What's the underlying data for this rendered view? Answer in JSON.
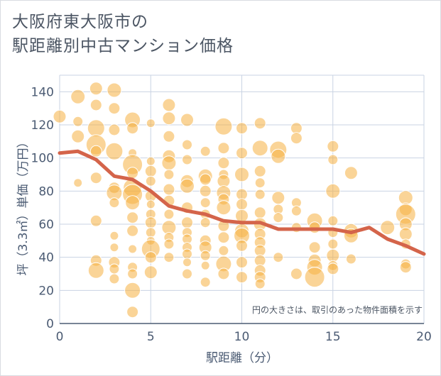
{
  "chart_data": {
    "type": "scatter",
    "title_lines": [
      "大阪府東大阪市の",
      "駅距離別中古マンション価格"
    ],
    "xlabel": "駅距離（分）",
    "ylabel": "坪（3.3㎡）単価（万円）",
    "xlim": [
      0,
      20
    ],
    "ylim": [
      0,
      150
    ],
    "x_ticks": [
      0,
      5,
      10,
      15,
      20
    ],
    "y_ticks": [
      0,
      20,
      40,
      60,
      80,
      100,
      120,
      140
    ],
    "grid": true,
    "note": "円の大きさは、取引のあった物件面積を示す",
    "colors": {
      "bubble": "#f5b041",
      "line": "#d4644a",
      "grid": "#c9d3e3",
      "axis": "#4b5b73"
    },
    "trend_line": {
      "x": [
        0,
        1,
        2,
        3,
        4,
        5,
        6,
        7,
        8,
        9,
        10,
        11,
        12,
        13,
        14,
        15,
        16,
        17,
        18,
        19,
        20
      ],
      "y": [
        103,
        104,
        99,
        89,
        87,
        80,
        71,
        68,
        66,
        62,
        61,
        61,
        57,
        57,
        57,
        57,
        55,
        58,
        51,
        47,
        42
      ]
    },
    "bubbles": [
      [
        0,
        125,
        9
      ],
      [
        1,
        137,
        10
      ],
      [
        1,
        122,
        7
      ],
      [
        1,
        113,
        9
      ],
      [
        1,
        85,
        6
      ],
      [
        2,
        142,
        9
      ],
      [
        2,
        132,
        8
      ],
      [
        2,
        118,
        12
      ],
      [
        2,
        108,
        14
      ],
      [
        2,
        104,
        8
      ],
      [
        2,
        88,
        8
      ],
      [
        2,
        62,
        8
      ],
      [
        2,
        38,
        8
      ],
      [
        2,
        32,
        11
      ],
      [
        3,
        141,
        10
      ],
      [
        3,
        130,
        8
      ],
      [
        3,
        117,
        8
      ],
      [
        3,
        104,
        12
      ],
      [
        3,
        82,
        8
      ],
      [
        3,
        79,
        11
      ],
      [
        3,
        73,
        7
      ],
      [
        3,
        53,
        6
      ],
      [
        3,
        46,
        6
      ],
      [
        3,
        37,
        8
      ],
      [
        3,
        33,
        7
      ],
      [
        3,
        27,
        7
      ],
      [
        4,
        123,
        11
      ],
      [
        4,
        118,
        8
      ],
      [
        4,
        103,
        6
      ],
      [
        4,
        96,
        14
      ],
      [
        4,
        91,
        8
      ],
      [
        4,
        82,
        13
      ],
      [
        4,
        78,
        14
      ],
      [
        4,
        73,
        10
      ],
      [
        4,
        64,
        8
      ],
      [
        4,
        56,
        8
      ],
      [
        4,
        45,
        6
      ],
      [
        4,
        34,
        7
      ],
      [
        4,
        30,
        7
      ],
      [
        4,
        20,
        11
      ],
      [
        4,
        7,
        8
      ],
      [
        5,
        121,
        6
      ],
      [
        5,
        98,
        6
      ],
      [
        5,
        92,
        8
      ],
      [
        5,
        86,
        7
      ],
      [
        5,
        77,
        8
      ],
      [
        5,
        72,
        6
      ],
      [
        5,
        66,
        7
      ],
      [
        5,
        61,
        8
      ],
      [
        5,
        55,
        7
      ],
      [
        5,
        50,
        6
      ],
      [
        5,
        45,
        13
      ],
      [
        5,
        40,
        8
      ],
      [
        5,
        31,
        9
      ],
      [
        6,
        132,
        9
      ],
      [
        6,
        124,
        9
      ],
      [
        6,
        113,
        8
      ],
      [
        6,
        101,
        9
      ],
      [
        6,
        97,
        10
      ],
      [
        6,
        90,
        7
      ],
      [
        6,
        81,
        8
      ],
      [
        6,
        74,
        8
      ],
      [
        6,
        66,
        7
      ],
      [
        6,
        58,
        10
      ],
      [
        6,
        52,
        7
      ],
      [
        6,
        48,
        7
      ],
      [
        6,
        40,
        7
      ],
      [
        7,
        123,
        9
      ],
      [
        7,
        108,
        7
      ],
      [
        7,
        99,
        7
      ],
      [
        7,
        86,
        9
      ],
      [
        7,
        83,
        10
      ],
      [
        7,
        70,
        8
      ],
      [
        7,
        61,
        8
      ],
      [
        7,
        55,
        7
      ],
      [
        7,
        51,
        7
      ],
      [
        7,
        46,
        7
      ],
      [
        7,
        42,
        7
      ],
      [
        7,
        37,
        6
      ],
      [
        7,
        30,
        7
      ],
      [
        8,
        104,
        7
      ],
      [
        8,
        89,
        10
      ],
      [
        8,
        87,
        8
      ],
      [
        8,
        80,
        8
      ],
      [
        8,
        73,
        7
      ],
      [
        8,
        66,
        7
      ],
      [
        8,
        61,
        7
      ],
      [
        8,
        50,
        8
      ],
      [
        8,
        46,
        9
      ],
      [
        8,
        41,
        7
      ],
      [
        8,
        35,
        6
      ],
      [
        8,
        25,
        7
      ],
      [
        9,
        119,
        12
      ],
      [
        9,
        106,
        8
      ],
      [
        9,
        97,
        8
      ],
      [
        9,
        90,
        7
      ],
      [
        9,
        86,
        9
      ],
      [
        9,
        79,
        10
      ],
      [
        9,
        75,
        8
      ],
      [
        9,
        70,
        10
      ],
      [
        9,
        59,
        8
      ],
      [
        9,
        52,
        8
      ],
      [
        9,
        44,
        7
      ],
      [
        9,
        36,
        11
      ],
      [
        9,
        30,
        8
      ],
      [
        10,
        118,
        8
      ],
      [
        10,
        103,
        8
      ],
      [
        10,
        90,
        10
      ],
      [
        10,
        78,
        8
      ],
      [
        10,
        72,
        8
      ],
      [
        10,
        65,
        9
      ],
      [
        10,
        56,
        10
      ],
      [
        10,
        53,
        11
      ],
      [
        10,
        47,
        8
      ],
      [
        10,
        37,
        8
      ],
      [
        10,
        28,
        8
      ],
      [
        11,
        121,
        8
      ],
      [
        11,
        106,
        11
      ],
      [
        11,
        92,
        8
      ],
      [
        11,
        85,
        7
      ],
      [
        11,
        78,
        7
      ],
      [
        11,
        67,
        8
      ],
      [
        11,
        60,
        9
      ],
      [
        11,
        54,
        8
      ],
      [
        11,
        49,
        8
      ],
      [
        11,
        44,
        8
      ],
      [
        11,
        38,
        8
      ],
      [
        11,
        32,
        8
      ],
      [
        11,
        28,
        8
      ],
      [
        11,
        24,
        7
      ],
      [
        12,
        105,
        12
      ],
      [
        12,
        101,
        10
      ],
      [
        12,
        76,
        9
      ],
      [
        12,
        69,
        7
      ],
      [
        12,
        64,
        7
      ],
      [
        12,
        40,
        7
      ],
      [
        13,
        118,
        8
      ],
      [
        13,
        112,
        8
      ],
      [
        13,
        73,
        7
      ],
      [
        13,
        68,
        7
      ],
      [
        13,
        58,
        7
      ],
      [
        13,
        30,
        8
      ],
      [
        14,
        62,
        11
      ],
      [
        14,
        58,
        8
      ],
      [
        14,
        46,
        8
      ],
      [
        14,
        38,
        9
      ],
      [
        14,
        34,
        11
      ],
      [
        14,
        28,
        14
      ],
      [
        15,
        107,
        8
      ],
      [
        15,
        99,
        7
      ],
      [
        15,
        80,
        10
      ],
      [
        15,
        62,
        7
      ],
      [
        15,
        55,
        7
      ],
      [
        15,
        48,
        7
      ],
      [
        15,
        41,
        9
      ],
      [
        15,
        35,
        7
      ],
      [
        15,
        33,
        8
      ],
      [
        16,
        91,
        9
      ],
      [
        16,
        56,
        10
      ],
      [
        16,
        53,
        10
      ],
      [
        16,
        39,
        7
      ],
      [
        18,
        58,
        10
      ],
      [
        19,
        76,
        10
      ],
      [
        19,
        69,
        9
      ],
      [
        19,
        66,
        14
      ],
      [
        19,
        60,
        9
      ],
      [
        19,
        54,
        9
      ],
      [
        19,
        48,
        7
      ],
      [
        19,
        36,
        7
      ],
      [
        19,
        34,
        8
      ]
    ]
  }
}
